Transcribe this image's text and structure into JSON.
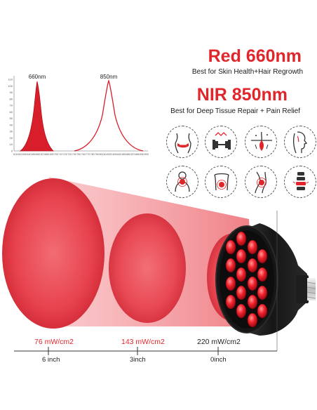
{
  "spectrum": {
    "peak_red_label": "660nm",
    "peak_nir_label": "850nm",
    "y_ticks": [
      "0",
      "10",
      "20",
      "30",
      "40",
      "50",
      "60",
      "70",
      "80",
      "90",
      "100",
      "110"
    ],
    "x_ticks": [
      "610",
      "620",
      "630",
      "640",
      "650",
      "660",
      "670",
      "680",
      "690",
      "700",
      "710",
      "720",
      "730",
      "740",
      "750",
      "760",
      "770",
      "780",
      "790",
      "800",
      "810",
      "820",
      "830",
      "840",
      "850",
      "860",
      "870",
      "880",
      "890",
      "900"
    ],
    "red_color": "#d81e2a",
    "nir_color": "#d81e2a"
  },
  "headings": {
    "red_title": "Red 660nm",
    "red_subtitle": "Best for Skin Health+Hair Regrowth",
    "nir_title": "NIR 850nm",
    "nir_subtitle": "Best for Deep Tissue Repair + Pain Relief"
  },
  "icons": [
    "waist-body-icon",
    "dumbbell-icon",
    "skin-hair-follicle-icon",
    "face-profile-icon",
    "neck-pain-icon",
    "back-pain-icon",
    "knee-joint-icon",
    "spine-icon"
  ],
  "beam": {
    "power_far": "76 mW/cm2",
    "power_mid": "143 mW/cm2",
    "power_near": "220 mW/cm2",
    "dist_far": "6 inch",
    "dist_mid": "3inch",
    "dist_near": "0inch",
    "power_far_color": "#e0262b",
    "power_mid_color": "#e0262b",
    "power_near_color": "#222222"
  }
}
